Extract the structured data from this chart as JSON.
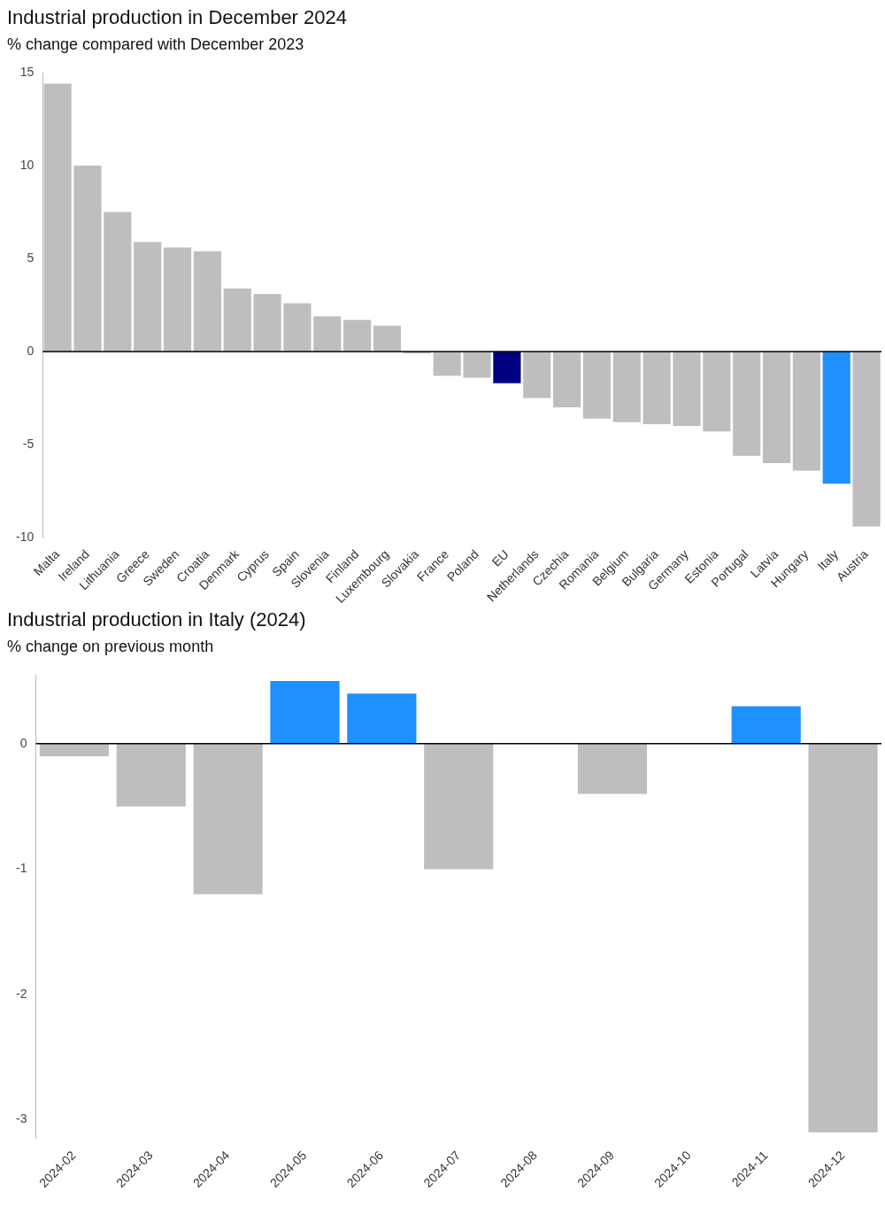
{
  "chart_data": [
    {
      "type": "bar",
      "title": "Industrial production in December 2024",
      "subtitle": "% change compared with December 2023",
      "categories": [
        "Malta",
        "Ireland",
        "Lithuania",
        "Greece",
        "Sweden",
        "Croatia",
        "Denmark",
        "Cyprus",
        "Spain",
        "Slovenia",
        "Finland",
        "Luxembourg",
        "Slovakia",
        "France",
        "Poland",
        "EU",
        "Netherlands",
        "Czechia",
        "Romania",
        "Belgium",
        "Bulgaria",
        "Germany",
        "Estonia",
        "Portugal",
        "Latvia",
        "Hungary",
        "Italy",
        "Austria"
      ],
      "values": [
        14.4,
        10.0,
        7.5,
        5.9,
        5.6,
        5.4,
        3.4,
        3.1,
        2.6,
        1.9,
        1.7,
        1.4,
        -0.1,
        -1.3,
        -1.4,
        -1.7,
        -2.5,
        -3.0,
        -3.6,
        -3.8,
        -3.9,
        -4.0,
        -4.3,
        -5.6,
        -6.0,
        -6.4,
        -7.1,
        -9.4
      ],
      "colors": [
        "#bebebe",
        "#bebebe",
        "#bebebe",
        "#bebebe",
        "#bebebe",
        "#bebebe",
        "#bebebe",
        "#bebebe",
        "#bebebe",
        "#bebebe",
        "#bebebe",
        "#bebebe",
        "#bebebe",
        "#bebebe",
        "#bebebe",
        "#000080",
        "#bebebe",
        "#bebebe",
        "#bebebe",
        "#bebebe",
        "#bebebe",
        "#bebebe",
        "#bebebe",
        "#bebebe",
        "#bebebe",
        "#bebebe",
        "#1e90ff",
        "#bebebe"
      ],
      "ylim": [
        -10,
        15
      ],
      "yticks": [
        -10,
        -5,
        0,
        5,
        10,
        15
      ],
      "grid": false,
      "legend": false,
      "ref_lines": [
        {
          "axis": "y",
          "value": 0,
          "color": "#000000"
        }
      ]
    },
    {
      "type": "bar",
      "title": "Industrial production in Italy (2024)",
      "subtitle": "% change on previous month",
      "categories": [
        "2024-02",
        "2024-03",
        "2024-04",
        "2024-05",
        "2024-06",
        "2024-07",
        "2024-08",
        "2024-09",
        "2024-10",
        "2024-11",
        "2024-12"
      ],
      "values": [
        -0.1,
        -0.5,
        -1.2,
        0.5,
        0.4,
        -1.0,
        0,
        -0.4,
        0,
        0.3,
        -3.1
      ],
      "colors": [
        "#bebebe",
        "#bebebe",
        "#bebebe",
        "#1e90ff",
        "#1e90ff",
        "#bebebe",
        "#bebebe",
        "#bebebe",
        "#bebebe",
        "#1e90ff",
        "#bebebe"
      ],
      "ylim": [
        -3.15,
        0.55
      ],
      "yticks": [
        -3,
        -2,
        -1,
        0
      ],
      "grid": false,
      "legend": false,
      "ref_lines": [
        {
          "axis": "y",
          "value": 0,
          "color": "#000000"
        }
      ]
    }
  ]
}
